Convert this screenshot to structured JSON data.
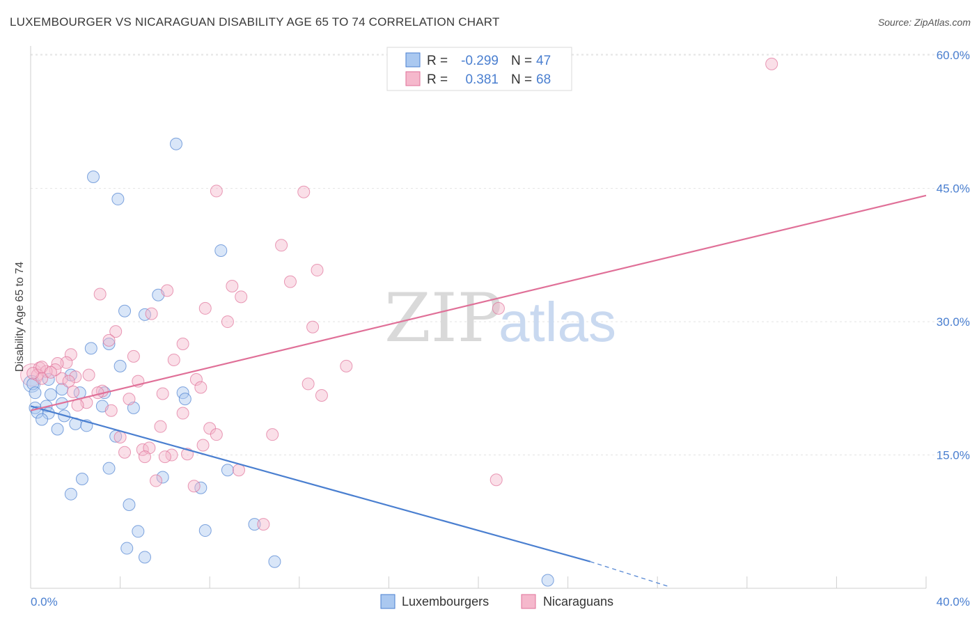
{
  "title": "LUXEMBOURGER VS NICARAGUAN DISABILITY AGE 65 TO 74 CORRELATION CHART",
  "source": "Source: ZipAtlas.com",
  "watermark": {
    "zip": "ZIP",
    "atlas": "atlas"
  },
  "colors": {
    "blue": "#4a7fd0",
    "blue_fill": "#aac8f0",
    "pink": "#e07098",
    "pink_fill": "#f5b8cc"
  },
  "legend": {
    "rows": [
      {
        "r_label": "R =",
        "r_value": "-0.299",
        "n_label": "N =",
        "n_value": "47"
      },
      {
        "r_label": "R =",
        "r_value": "0.381",
        "n_label": "N =",
        "n_value": "68"
      }
    ]
  },
  "bottom_legend": [
    "Luxembourgers",
    "Nicaraguans"
  ],
  "chart_data": {
    "type": "scatter",
    "title": "LUXEMBOURGER VS NICARAGUAN DISABILITY AGE 65 TO 74 CORRELATION CHART",
    "xlabel": "",
    "ylabel": "Disability Age 65 to 74",
    "xlim": [
      0,
      40
    ],
    "ylim": [
      0,
      60
    ],
    "x_tick_labels": [
      "0.0%",
      "40.0%"
    ],
    "y_ticks": [
      15,
      30,
      45,
      60
    ],
    "y_tick_labels": [
      "15.0%",
      "30.0%",
      "45.0%",
      "60.0%"
    ],
    "grid": true,
    "series": [
      {
        "name": "Luxembourgers",
        "r": -0.299,
        "n": 47,
        "trend": {
          "x": [
            0,
            25
          ],
          "y": [
            20.5,
            3.0
          ],
          "dashed_to": [
            28.5,
            0.2
          ]
        },
        "points": [
          [
            6.5,
            50.0
          ],
          [
            2.8,
            46.3
          ],
          [
            3.9,
            43.8
          ],
          [
            8.5,
            38.0
          ],
          [
            5.7,
            33.0
          ],
          [
            4.2,
            31.2
          ],
          [
            5.1,
            30.8
          ],
          [
            3.5,
            27.5
          ],
          [
            2.7,
            27.0
          ],
          [
            4.0,
            25.0
          ],
          [
            1.8,
            24.0
          ],
          [
            0.1,
            23.0
          ],
          [
            0.2,
            22.0
          ],
          [
            0.8,
            23.5
          ],
          [
            1.4,
            22.4
          ],
          [
            2.2,
            22.0
          ],
          [
            3.3,
            22.0
          ],
          [
            6.8,
            22.0
          ],
          [
            6.9,
            21.3
          ],
          [
            0.9,
            21.8
          ],
          [
            1.4,
            20.8
          ],
          [
            0.7,
            20.5
          ],
          [
            0.2,
            20.3
          ],
          [
            3.2,
            20.5
          ],
          [
            4.6,
            20.3
          ],
          [
            0.3,
            19.8
          ],
          [
            0.8,
            19.7
          ],
          [
            1.5,
            19.4
          ],
          [
            0.5,
            19.0
          ],
          [
            2.0,
            18.5
          ],
          [
            2.5,
            18.3
          ],
          [
            1.2,
            17.9
          ],
          [
            3.8,
            17.1
          ],
          [
            3.5,
            13.5
          ],
          [
            8.8,
            13.3
          ],
          [
            2.3,
            12.3
          ],
          [
            5.9,
            12.5
          ],
          [
            7.6,
            11.3
          ],
          [
            1.8,
            10.6
          ],
          [
            4.4,
            9.4
          ],
          [
            10.0,
            7.2
          ],
          [
            4.8,
            6.4
          ],
          [
            7.8,
            6.5
          ],
          [
            4.3,
            4.5
          ],
          [
            5.1,
            3.5
          ],
          [
            10.9,
            3.0
          ],
          [
            23.1,
            0.9
          ]
        ]
      },
      {
        "name": "Nicaraguans",
        "r": 0.381,
        "n": 68,
        "trend": {
          "x": [
            0,
            40
          ],
          "y": [
            20.0,
            44.2
          ]
        },
        "points": [
          [
            33.1,
            59.0
          ],
          [
            8.3,
            44.7
          ],
          [
            12.2,
            44.6
          ],
          [
            11.2,
            38.6
          ],
          [
            12.8,
            35.8
          ],
          [
            11.6,
            34.5
          ],
          [
            9.0,
            34.0
          ],
          [
            6.1,
            33.5
          ],
          [
            3.1,
            33.1
          ],
          [
            9.4,
            32.8
          ],
          [
            20.9,
            31.5
          ],
          [
            7.8,
            31.5
          ],
          [
            5.4,
            30.9
          ],
          [
            8.8,
            30.0
          ],
          [
            12.6,
            29.4
          ],
          [
            3.8,
            28.9
          ],
          [
            3.5,
            27.9
          ],
          [
            6.8,
            27.5
          ],
          [
            1.8,
            26.3
          ],
          [
            4.6,
            26.1
          ],
          [
            6.4,
            25.7
          ],
          [
            1.6,
            25.4
          ],
          [
            1.2,
            25.3
          ],
          [
            14.1,
            25.0
          ],
          [
            0.4,
            24.8
          ],
          [
            1.1,
            24.6
          ],
          [
            0.7,
            24.4
          ],
          [
            0.3,
            24.0
          ],
          [
            4.8,
            23.3
          ],
          [
            7.4,
            23.5
          ],
          [
            2.6,
            24.0
          ],
          [
            1.4,
            23.6
          ],
          [
            0.5,
            23.6
          ],
          [
            0.1,
            24.2
          ],
          [
            12.4,
            23.0
          ],
          [
            2.0,
            23.8
          ],
          [
            1.7,
            23.3
          ],
          [
            3.2,
            22.2
          ],
          [
            7.6,
            22.6
          ],
          [
            3.0,
            22.0
          ],
          [
            5.9,
            21.9
          ],
          [
            13.0,
            21.7
          ],
          [
            4.4,
            21.3
          ],
          [
            2.5,
            20.9
          ],
          [
            2.1,
            20.6
          ],
          [
            3.6,
            20.0
          ],
          [
            6.8,
            19.7
          ],
          [
            8.0,
            18.0
          ],
          [
            5.8,
            18.2
          ],
          [
            8.3,
            17.3
          ],
          [
            10.8,
            17.3
          ],
          [
            4.0,
            17.0
          ],
          [
            7.7,
            16.1
          ],
          [
            5.0,
            15.6
          ],
          [
            4.2,
            15.3
          ],
          [
            5.3,
            15.8
          ],
          [
            6.3,
            15.0
          ],
          [
            7.0,
            15.1
          ],
          [
            6.0,
            14.8
          ],
          [
            5.1,
            14.8
          ],
          [
            9.3,
            13.3
          ],
          [
            5.6,
            12.1
          ],
          [
            7.3,
            11.5
          ],
          [
            20.8,
            12.2
          ],
          [
            10.4,
            7.2
          ],
          [
            0.5,
            24.9
          ],
          [
            0.9,
            24.3
          ],
          [
            1.9,
            22.1
          ]
        ]
      }
    ]
  }
}
